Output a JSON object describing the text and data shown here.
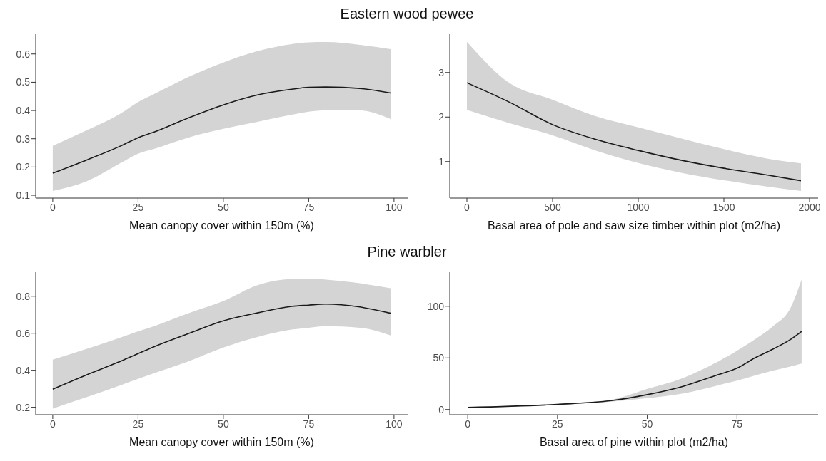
{
  "chart_data": [
    {
      "type": "line",
      "title": "Eastern wood pewee",
      "xlabel": "Mean  canopy cover within 150m (%)",
      "xlim": [
        -5,
        104
      ],
      "ylim": [
        0.09,
        0.67
      ],
      "xticks": [
        0,
        25,
        50,
        75,
        100
      ],
      "yticks": [
        0.1,
        0.2,
        0.3,
        0.4,
        0.5,
        0.6
      ],
      "x": [
        0,
        10,
        20,
        25,
        30,
        40,
        50,
        60,
        70,
        75,
        80,
        90,
        99
      ],
      "series": [
        {
          "color": "#1a1a1a",
          "values": [
            0.178,
            0.225,
            0.275,
            0.304,
            0.325,
            0.375,
            0.42,
            0.455,
            0.475,
            0.482,
            0.483,
            0.478,
            0.462
          ],
          "lower": [
            0.115,
            0.15,
            0.215,
            0.247,
            0.265,
            0.305,
            0.335,
            0.36,
            0.385,
            0.396,
            0.4,
            0.4,
            0.37
          ],
          "upper": [
            0.275,
            0.33,
            0.39,
            0.43,
            0.46,
            0.52,
            0.57,
            0.61,
            0.635,
            0.641,
            0.642,
            0.632,
            0.617
          ]
        }
      ]
    },
    {
      "type": "line",
      "xlabel": "Basal area of pole and saw size timber within plot (m2/ha)",
      "xlim": [
        -100,
        2050
      ],
      "ylim": [
        0.18,
        3.86
      ],
      "xticks": [
        0,
        500,
        1000,
        1500,
        2000
      ],
      "yticks": [
        1,
        2,
        3
      ],
      "x": [
        0,
        250,
        500,
        750,
        1000,
        1250,
        1500,
        1750,
        1950
      ],
      "series": [
        {
          "color": "#1a1a1a",
          "values": [
            2.77,
            2.33,
            1.83,
            1.5,
            1.25,
            1.03,
            0.85,
            0.7,
            0.57
          ],
          "lower": [
            2.16,
            1.86,
            1.59,
            1.25,
            0.97,
            0.75,
            0.58,
            0.44,
            0.34
          ],
          "upper": [
            3.69,
            2.76,
            2.39,
            2.02,
            1.77,
            1.52,
            1.28,
            1.07,
            0.96
          ]
        }
      ]
    },
    {
      "type": "line",
      "title": "Pine warbler",
      "xlabel": "Mean  canopy cover within 150m (%)",
      "xlim": [
        -5,
        104
      ],
      "ylim": [
        0.16,
        0.93
      ],
      "xticks": [
        0,
        25,
        50,
        75,
        100
      ],
      "yticks": [
        0.2,
        0.4,
        0.6,
        0.8
      ],
      "x": [
        0,
        10,
        20,
        25,
        30,
        40,
        50,
        60,
        70,
        75,
        80,
        90,
        99
      ],
      "series": [
        {
          "color": "#1a1a1a",
          "values": [
            0.298,
            0.376,
            0.45,
            0.49,
            0.53,
            0.6,
            0.667,
            0.71,
            0.745,
            0.752,
            0.758,
            0.742,
            0.708
          ],
          "lower": [
            0.193,
            0.255,
            0.32,
            0.353,
            0.386,
            0.45,
            0.523,
            0.58,
            0.62,
            0.63,
            0.638,
            0.63,
            0.588
          ],
          "upper": [
            0.457,
            0.516,
            0.578,
            0.61,
            0.64,
            0.71,
            0.774,
            0.86,
            0.893,
            0.895,
            0.89,
            0.87,
            0.843
          ]
        }
      ]
    },
    {
      "type": "line",
      "xlabel": "Basal area of pine within plot (m2/ha)",
      "xlim": [
        -5,
        97.6
      ],
      "ylim": [
        -5,
        133
      ],
      "xticks": [
        0,
        25,
        50,
        75
      ],
      "yticks": [
        0,
        50,
        100
      ],
      "x": [
        0,
        25,
        40,
        50,
        60,
        70,
        75,
        80,
        85,
        90,
        93
      ],
      "series": [
        {
          "color": "#1a1a1a",
          "values": [
            2,
            5,
            8.6,
            14.4,
            22.5,
            34,
            40,
            50,
            58.5,
            68,
            75.6
          ],
          "lower": [
            1.5,
            4.5,
            7.6,
            11,
            15.5,
            23.7,
            28,
            33,
            37.6,
            41.8,
            44.5
          ],
          "upper": [
            2.5,
            5.5,
            9.5,
            20,
            30.6,
            47,
            57,
            68,
            80.5,
            99,
            126
          ]
        }
      ]
    }
  ]
}
